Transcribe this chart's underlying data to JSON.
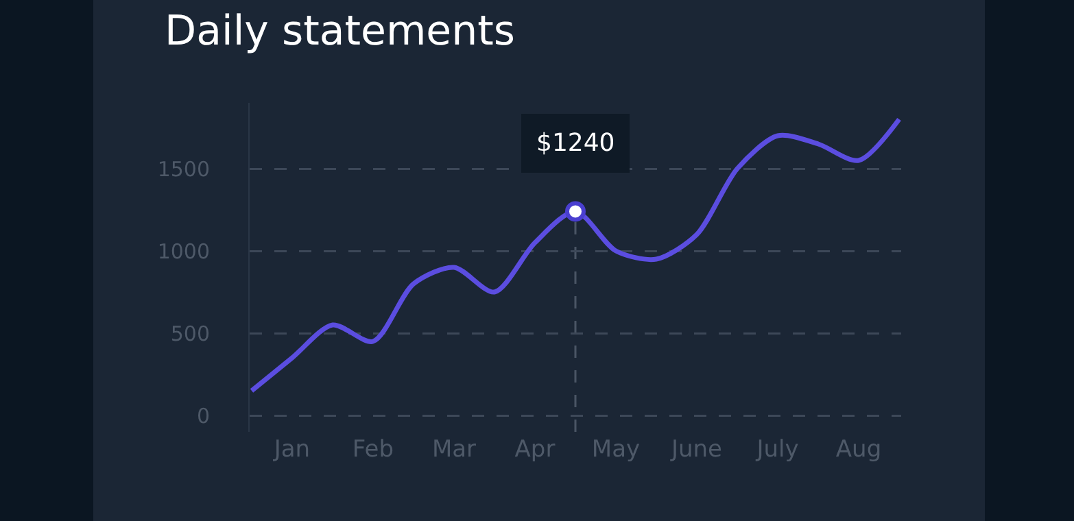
{
  "chart_data": {
    "type": "line",
    "title": "Daily statements",
    "categories": [
      null,
      "Jan",
      null,
      "Feb",
      null,
      "Mar",
      null,
      "Apr",
      null,
      "May",
      null,
      "June",
      null,
      "July",
      null,
      "Aug",
      null
    ],
    "series": [
      {
        "color": "#5b4de0",
        "values": [
          150,
          350,
          550,
          450,
          800,
          900,
          750,
          1050,
          1240,
          1000,
          950,
          1100,
          1500,
          1700,
          1650,
          1550,
          1800
        ],
        "value_labels": [
          null,
          null,
          null,
          null,
          null,
          null,
          null,
          null,
          "$1240",
          null,
          null,
          null,
          null,
          null,
          null,
          null,
          null
        ]
      }
    ],
    "ylim": [
      -100,
      1900
    ],
    "yticks": [
      0,
      500,
      1000,
      1500
    ],
    "grid": "y",
    "line_style": "solid",
    "marker": "none"
  }
}
